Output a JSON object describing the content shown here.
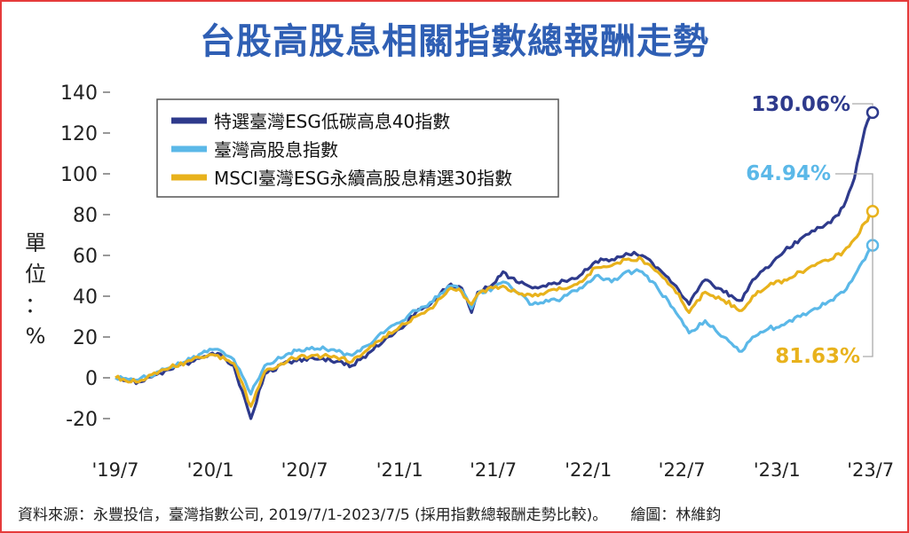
{
  "title": "台股高股息相關指數總報酬走勢",
  "footer": {
    "source": "資料來源：永豐投信，臺灣指數公司, 2019/7/1-2023/7/5 (採用指數總報酬走勢比較)。",
    "credit": "繪圖：林維鈞"
  },
  "chart_data": {
    "type": "line",
    "ylabel": "單位：%",
    "ylim": [
      -20,
      140
    ],
    "yticks": [
      140,
      120,
      100,
      80,
      60,
      40,
      20,
      0,
      -20
    ],
    "xticks": [
      "'19/7",
      "'20/1",
      "'20/7",
      "'21/1",
      "'21/7",
      "'22/1",
      "'22/7",
      "'23/1",
      "'23/7"
    ],
    "xrange": [
      "2019-07-01",
      "2023-07-05"
    ],
    "grid": false,
    "legend_position": "top-left",
    "series": [
      {
        "name": "特選臺灣ESG低碳高息40指數",
        "color": "#2e3a8c",
        "end_label": "130.06%",
        "end_value": 130.06,
        "points": [
          [
            "2019-07-01",
            0
          ],
          [
            "2019-08-15",
            -2
          ],
          [
            "2019-10-15",
            4
          ],
          [
            "2019-12-15",
            10
          ],
          [
            "2020-01-15",
            12
          ],
          [
            "2020-02-15",
            6
          ],
          [
            "2020-03-19",
            -20
          ],
          [
            "2020-04-15",
            2
          ],
          [
            "2020-06-01",
            8
          ],
          [
            "2020-07-15",
            10
          ],
          [
            "2020-09-01",
            8
          ],
          [
            "2020-10-01",
            6
          ],
          [
            "2020-11-01",
            12
          ],
          [
            "2020-12-01",
            18
          ],
          [
            "2021-01-01",
            24
          ],
          [
            "2021-02-01",
            32
          ],
          [
            "2021-03-01",
            36
          ],
          [
            "2021-04-10",
            46
          ],
          [
            "2021-05-01",
            44
          ],
          [
            "2021-05-20",
            32
          ],
          [
            "2021-06-01",
            42
          ],
          [
            "2021-07-01",
            46
          ],
          [
            "2021-07-20",
            52
          ],
          [
            "2021-08-15",
            47
          ],
          [
            "2021-09-15",
            44
          ],
          [
            "2021-11-01",
            46
          ],
          [
            "2021-12-15",
            50
          ],
          [
            "2022-01-15",
            57
          ],
          [
            "2022-02-15",
            58
          ],
          [
            "2022-03-15",
            61
          ],
          [
            "2022-04-15",
            60
          ],
          [
            "2022-05-15",
            54
          ],
          [
            "2022-06-15",
            46
          ],
          [
            "2022-07-15",
            36
          ],
          [
            "2022-08-15",
            48
          ],
          [
            "2022-09-20",
            42
          ],
          [
            "2022-10-25",
            38
          ],
          [
            "2022-11-15",
            48
          ],
          [
            "2022-12-15",
            54
          ],
          [
            "2023-01-15",
            62
          ],
          [
            "2023-02-15",
            68
          ],
          [
            "2023-03-15",
            72
          ],
          [
            "2023-04-15",
            76
          ],
          [
            "2023-05-10",
            84
          ],
          [
            "2023-05-31",
            98
          ],
          [
            "2023-06-10",
            110
          ],
          [
            "2023-06-20",
            122
          ],
          [
            "2023-07-05",
            130.06
          ]
        ]
      },
      {
        "name": "臺灣高股息指數",
        "color": "#5bb8e8",
        "end_label": "64.94%",
        "end_value": 64.94,
        "points": [
          [
            "2019-07-01",
            0
          ],
          [
            "2019-08-15",
            -1
          ],
          [
            "2019-10-15",
            5
          ],
          [
            "2019-12-15",
            12
          ],
          [
            "2020-01-15",
            14
          ],
          [
            "2020-02-15",
            9
          ],
          [
            "2020-03-19",
            -8
          ],
          [
            "2020-04-15",
            6
          ],
          [
            "2020-06-01",
            12
          ],
          [
            "2020-07-15",
            15
          ],
          [
            "2020-09-01",
            13
          ],
          [
            "2020-10-01",
            11
          ],
          [
            "2020-11-01",
            16
          ],
          [
            "2020-12-01",
            22
          ],
          [
            "2021-01-01",
            27
          ],
          [
            "2021-02-01",
            33
          ],
          [
            "2021-03-01",
            37
          ],
          [
            "2021-04-10",
            45
          ],
          [
            "2021-05-01",
            43
          ],
          [
            "2021-05-20",
            34
          ],
          [
            "2021-06-01",
            41
          ],
          [
            "2021-07-01",
            44
          ],
          [
            "2021-07-20",
            47
          ],
          [
            "2021-08-15",
            42
          ],
          [
            "2021-09-15",
            36
          ],
          [
            "2021-11-01",
            38
          ],
          [
            "2021-12-15",
            44
          ],
          [
            "2022-01-15",
            50
          ],
          [
            "2022-02-15",
            47
          ],
          [
            "2022-03-15",
            52
          ],
          [
            "2022-04-15",
            52
          ],
          [
            "2022-05-15",
            44
          ],
          [
            "2022-06-15",
            34
          ],
          [
            "2022-07-15",
            22
          ],
          [
            "2022-08-15",
            28
          ],
          [
            "2022-09-20",
            20
          ],
          [
            "2022-10-25",
            13
          ],
          [
            "2022-11-15",
            20
          ],
          [
            "2022-12-15",
            24
          ],
          [
            "2023-01-15",
            26
          ],
          [
            "2023-02-15",
            30
          ],
          [
            "2023-03-15",
            34
          ],
          [
            "2023-04-15",
            38
          ],
          [
            "2023-05-10",
            42
          ],
          [
            "2023-05-31",
            50
          ],
          [
            "2023-06-20",
            58
          ],
          [
            "2023-07-05",
            64.94
          ]
        ]
      },
      {
        "name": "MSCI臺灣ESG永續高股息精選30指數",
        "color": "#e8b21c",
        "end_label": "81.63%",
        "end_value": 81.63,
        "points": [
          [
            "2019-07-01",
            0
          ],
          [
            "2019-08-15",
            -2
          ],
          [
            "2019-10-15",
            5
          ],
          [
            "2019-12-15",
            10
          ],
          [
            "2020-01-15",
            11
          ],
          [
            "2020-02-15",
            7
          ],
          [
            "2020-03-19",
            -14
          ],
          [
            "2020-04-15",
            3
          ],
          [
            "2020-06-01",
            9
          ],
          [
            "2020-07-15",
            11
          ],
          [
            "2020-09-01",
            10
          ],
          [
            "2020-10-01",
            8
          ],
          [
            "2020-11-01",
            14
          ],
          [
            "2020-12-01",
            20
          ],
          [
            "2021-01-01",
            25
          ],
          [
            "2021-02-01",
            30
          ],
          [
            "2021-03-01",
            34
          ],
          [
            "2021-04-10",
            44
          ],
          [
            "2021-05-01",
            42
          ],
          [
            "2021-05-20",
            36
          ],
          [
            "2021-06-01",
            41
          ],
          [
            "2021-07-01",
            44
          ],
          [
            "2021-07-20",
            45
          ],
          [
            "2021-08-15",
            42
          ],
          [
            "2021-09-15",
            40
          ],
          [
            "2021-11-01",
            43
          ],
          [
            "2021-12-15",
            47
          ],
          [
            "2022-01-15",
            54
          ],
          [
            "2022-02-15",
            55
          ],
          [
            "2022-03-15",
            58
          ],
          [
            "2022-04-15",
            58
          ],
          [
            "2022-05-15",
            52
          ],
          [
            "2022-06-15",
            44
          ],
          [
            "2022-07-15",
            32
          ],
          [
            "2022-08-15",
            42
          ],
          [
            "2022-09-20",
            38
          ],
          [
            "2022-10-25",
            33
          ],
          [
            "2022-11-15",
            40
          ],
          [
            "2022-12-15",
            45
          ],
          [
            "2023-01-15",
            48
          ],
          [
            "2023-02-15",
            52
          ],
          [
            "2023-03-15",
            55
          ],
          [
            "2023-04-15",
            58
          ],
          [
            "2023-05-10",
            62
          ],
          [
            "2023-05-31",
            68
          ],
          [
            "2023-06-20",
            76
          ],
          [
            "2023-07-05",
            81.63
          ]
        ]
      }
    ]
  }
}
